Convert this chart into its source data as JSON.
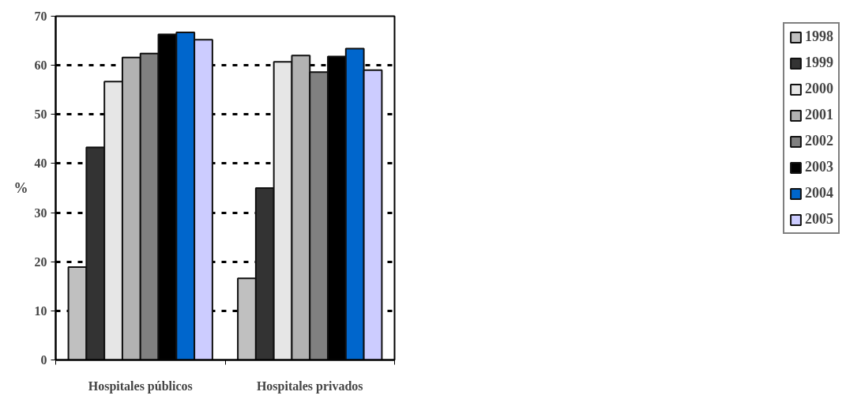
{
  "chart_data": {
    "type": "bar",
    "ylabel": "%",
    "categories": [
      "Hospitales públicos",
      "Hospitales privados"
    ],
    "series": [
      {
        "name": "1998",
        "color": "#c0c0c0",
        "values": [
          18.9,
          16.6
        ]
      },
      {
        "name": "1999",
        "color": "#333333",
        "values": [
          43.3,
          35.0
        ]
      },
      {
        "name": "2000",
        "color": "#e6e6e6",
        "values": [
          56.7,
          60.7
        ]
      },
      {
        "name": "2001",
        "color": "#b2b2b2",
        "values": [
          61.6,
          62.0
        ]
      },
      {
        "name": "2002",
        "color": "#808080",
        "values": [
          62.4,
          58.6
        ]
      },
      {
        "name": "2003",
        "color": "#000000",
        "values": [
          66.3,
          61.8
        ]
      },
      {
        "name": "2004",
        "color": "#0066cc",
        "values": [
          66.7,
          63.4
        ]
      },
      {
        "name": "2005",
        "color": "#ccccff",
        "values": [
          65.2,
          59.0
        ]
      }
    ],
    "ylim": [
      0,
      70
    ],
    "yticks": [
      0,
      10,
      20,
      30,
      40,
      50,
      60,
      70
    ],
    "grid": "y",
    "legend": "right"
  }
}
